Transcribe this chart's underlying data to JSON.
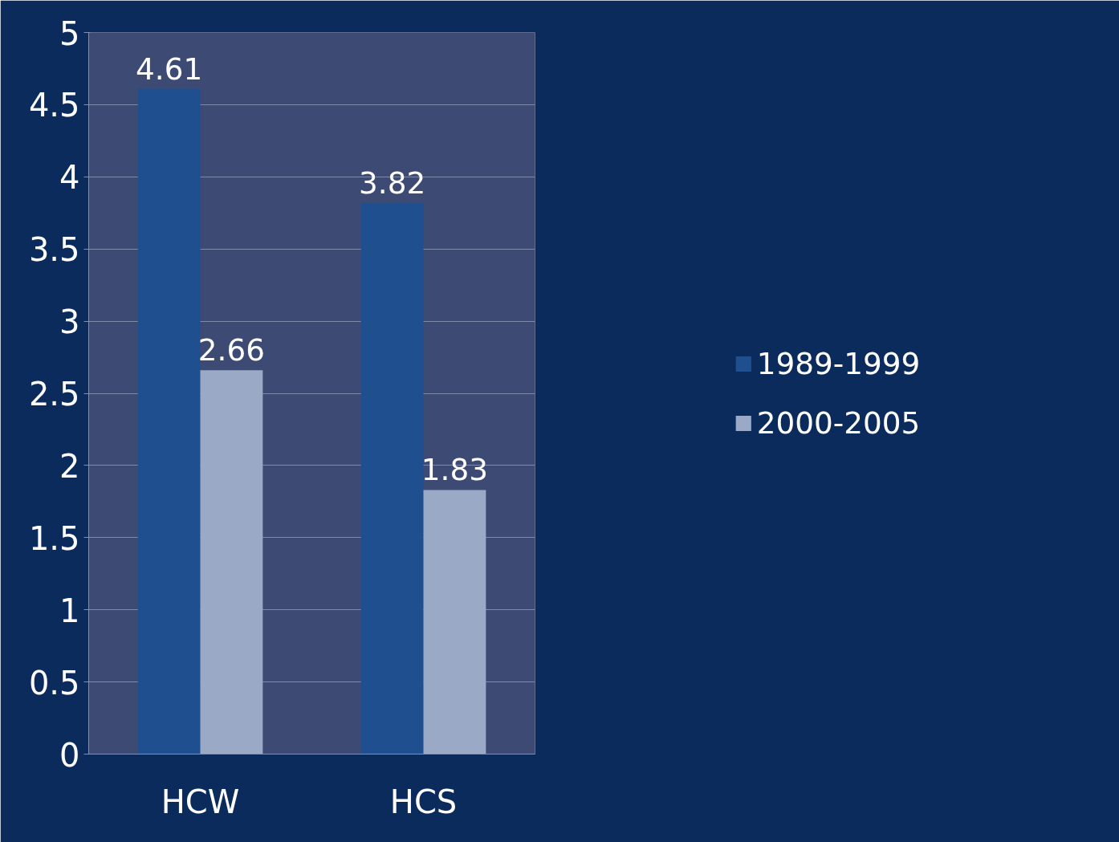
{
  "chart_data": {
    "type": "bar",
    "categories": [
      "HCW",
      "HCS"
    ],
    "series": [
      {
        "name": "1989-1999",
        "color": "#1f4f8f",
        "values": [
          4.61,
          3.82
        ]
      },
      {
        "name": "2000-2005",
        "color": "#9aa9c6",
        "values": [
          2.66,
          1.83
        ]
      }
    ],
    "ylim": [
      0,
      5
    ],
    "yticks": [
      0,
      0.5,
      1,
      1.5,
      2,
      2.5,
      3,
      3.5,
      4,
      4.5,
      5
    ],
    "grid": "y",
    "legend": "right",
    "data_labels": true
  }
}
